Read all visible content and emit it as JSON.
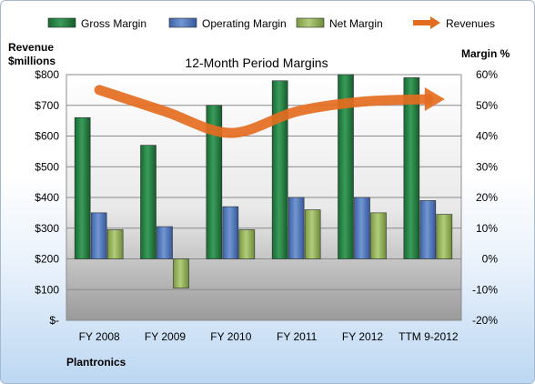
{
  "chart_data": {
    "type": "bar",
    "title": "12-Month Period Margins",
    "company": "Plantronics",
    "y_left_label": [
      "Revenue",
      "$millions"
    ],
    "y_right_label": "Margin %",
    "categories": [
      "FY 2008",
      "FY 2009",
      "FY 2010",
      "FY 2011",
      "FY 2012",
      "TTM 9-2012"
    ],
    "y_left_ticks": [
      "$-",
      "$100",
      "$200",
      "$300",
      "$400",
      "$500",
      "$600",
      "$700",
      "$800"
    ],
    "y_right_ticks": [
      "-20%",
      "-10%",
      "0%",
      "10%",
      "20%",
      "30%",
      "40%",
      "50%",
      "60%"
    ],
    "ylim_left": [
      0,
      800
    ],
    "ylim_right": [
      -20,
      60
    ],
    "series": [
      {
        "name": "Gross Margin",
        "type": "bar",
        "axis": "right",
        "color": "#1f7a3e",
        "values": [
          46,
          37,
          50,
          58,
          60,
          59
        ]
      },
      {
        "name": "Operating Margin",
        "type": "bar",
        "axis": "right",
        "color": "#4a74b9",
        "values": [
          15,
          10.5,
          17,
          20,
          20,
          19
        ]
      },
      {
        "name": "Net Margin",
        "type": "bar",
        "axis": "right",
        "color": "#8fae55",
        "values": [
          9.5,
          -9.5,
          9.5,
          16,
          15,
          14.5
        ]
      },
      {
        "name": "Revenues",
        "type": "line",
        "axis": "left",
        "color": "#ed7d31",
        "values": [
          750,
          680,
          610,
          680,
          712,
          720
        ]
      }
    ],
    "grid": true,
    "legend": "top"
  }
}
